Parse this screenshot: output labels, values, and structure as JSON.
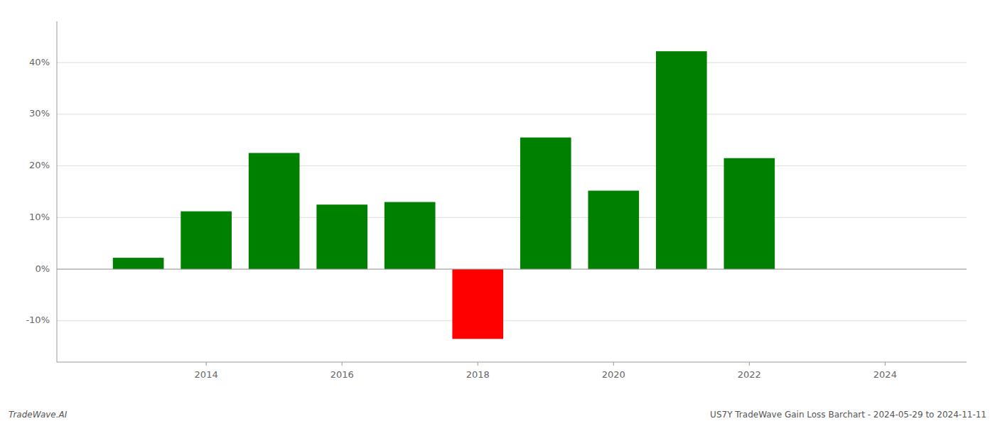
{
  "chart_data": {
    "type": "bar",
    "x": [
      2013,
      2014,
      2015,
      2016,
      2017,
      2018,
      2019,
      2020,
      2021,
      2022,
      2023
    ],
    "values": [
      2.2,
      11.2,
      22.5,
      12.5,
      13.0,
      -13.5,
      25.5,
      15.2,
      42.2,
      21.5,
      0.0
    ],
    "colors": [
      "#008000",
      "#008000",
      "#008000",
      "#008000",
      "#008000",
      "#ff0000",
      "#008000",
      "#008000",
      "#008000",
      "#008000",
      "#008000"
    ],
    "xlim": [
      2011.8,
      2025.2
    ],
    "xticks": [
      2014,
      2016,
      2018,
      2020,
      2022,
      2024
    ],
    "ylim": [
      -18,
      48
    ],
    "yticks": [
      {
        "value": -10,
        "label": "-10%"
      },
      {
        "value": 0,
        "label": "0%"
      },
      {
        "value": 10,
        "label": "10%"
      },
      {
        "value": 20,
        "label": "20%"
      },
      {
        "value": 30,
        "label": "30%"
      },
      {
        "value": 40,
        "label": "40%"
      }
    ],
    "grid": true,
    "annotations": [
      "TradeWave.AI",
      "US7Y TradeWave Gain Loss Barchart - 2024-05-29 to 2024-11-11"
    ]
  }
}
